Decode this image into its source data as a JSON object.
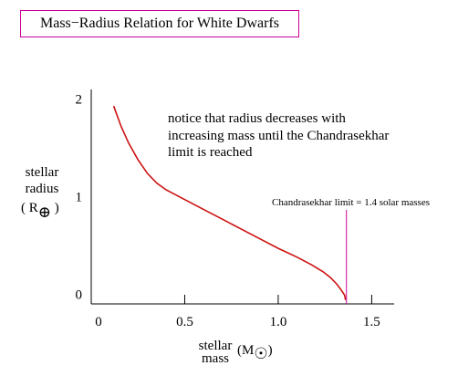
{
  "chart_data": {
    "type": "line",
    "title": "Mass−Radius Relation for White Dwarfs",
    "xlabel": {
      "line1": "stellar",
      "line2": "mass",
      "unit": "(M",
      "unit_sub": "☉",
      "unit_close": ")"
    },
    "ylabel": {
      "line1": "stellar",
      "line2": "radius",
      "unit": "( R",
      "unit_sub": "⊕",
      "unit_close": " )"
    },
    "xlim": [
      0,
      1.62
    ],
    "ylim": [
      -0.1,
      2.1
    ],
    "x_ticks": [
      {
        "value": 0,
        "label": "0",
        "tick": false
      },
      {
        "value": 0.5,
        "label": "0.5",
        "tick": true
      },
      {
        "value": 1.0,
        "label": "1.0",
        "tick": true
      },
      {
        "value": 1.5,
        "label": "1.5",
        "tick": true
      }
    ],
    "y_ticks": [
      {
        "value": 0,
        "label": "0"
      },
      {
        "value": 1,
        "label": "1"
      },
      {
        "value": 2,
        "label": "2"
      }
    ],
    "series": [
      {
        "color": "#cc1111",
        "x": [
          0.12,
          0.16,
          0.2,
          0.25,
          0.3,
          0.35,
          0.4,
          0.5,
          0.6,
          0.7,
          0.8,
          0.9,
          1.0,
          1.1,
          1.18,
          1.24,
          1.28,
          1.31,
          1.33,
          1.345,
          1.355,
          1.36
        ],
        "y": [
          1.93,
          1.72,
          1.55,
          1.38,
          1.24,
          1.14,
          1.07,
          0.97,
          0.87,
          0.77,
          0.67,
          0.57,
          0.47,
          0.38,
          0.3,
          0.23,
          0.17,
          0.11,
          0.06,
          0.02,
          -0.01,
          -0.06
        ]
      }
    ],
    "annotations": [
      {
        "lines": [
          "notice that radius decreases with",
          "increasing mass until the Chandrasekhar",
          "limit is reached"
        ]
      },
      {
        "text": "Chandrasekhar limit = 1.4 solar masses",
        "x": 1.36,
        "color": "#cc0099"
      }
    ]
  }
}
